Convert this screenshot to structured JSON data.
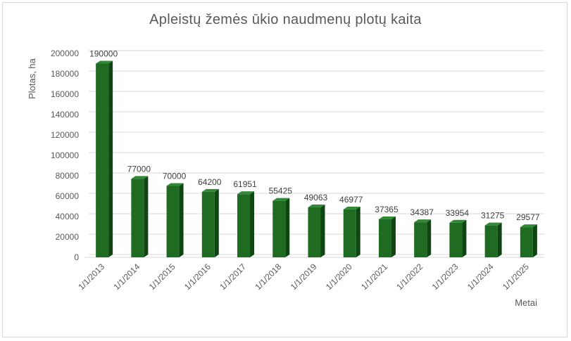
{
  "chart_data": {
    "type": "bar",
    "title": "Apleistų žemės ūkio naudmenų plotų kaita",
    "xlabel": "Metai",
    "ylabel": "Plotas, ha",
    "categories": [
      "1/1/2013",
      "1/1/2014",
      "1/1/2015",
      "1/1/2016",
      "1/1/2017",
      "1/1/2018",
      "1/1/2019",
      "1/1/2020",
      "1/1/2021",
      "1/1/2022",
      "1/1/2023",
      "1/1/2024",
      "1/1/2025"
    ],
    "values": [
      190000,
      77000,
      70000,
      64200,
      61951,
      55425,
      49063,
      46977,
      37365,
      34387,
      33954,
      31275,
      29577
    ],
    "data_labels": [
      "190000",
      "77000",
      "70000",
      "64200",
      "61951",
      "55425",
      "49063",
      "46977",
      "37365",
      "34387",
      "33954",
      "31275",
      "29577"
    ],
    "ylim": [
      0,
      200000
    ],
    "yticks": [
      "0",
      "20000",
      "40000",
      "60000",
      "80000",
      "100000",
      "120000",
      "140000",
      "160000",
      "180000",
      "200000"
    ],
    "grid": true,
    "legend": "none",
    "colors": {
      "bar_front": "#1e6b21",
      "bar_side": "#0f4512",
      "bar_top": "#2f8a33",
      "grid": "#d9d9d9",
      "text": "#595959"
    }
  }
}
